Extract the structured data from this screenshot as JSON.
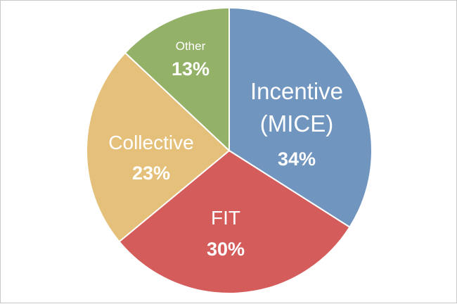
{
  "chart_data": {
    "type": "pie",
    "title": "",
    "slices": [
      {
        "label_lines": [
          "Incentive",
          "(MICE)"
        ],
        "value": 34,
        "value_label": "34%",
        "color": "#7095bf"
      },
      {
        "label_lines": [
          "FIT"
        ],
        "value": 30,
        "value_label": "30%",
        "color": "#d45d5c"
      },
      {
        "label_lines": [
          "Collective"
        ],
        "value": 23,
        "value_label": "23%",
        "color": "#e5c07a"
      },
      {
        "label_lines": [
          "Other"
        ],
        "value": 13,
        "value_label": "13%",
        "color": "#93b167"
      }
    ],
    "start_angle": "12 o'clock",
    "direction": "clockwise",
    "legend": "none"
  }
}
